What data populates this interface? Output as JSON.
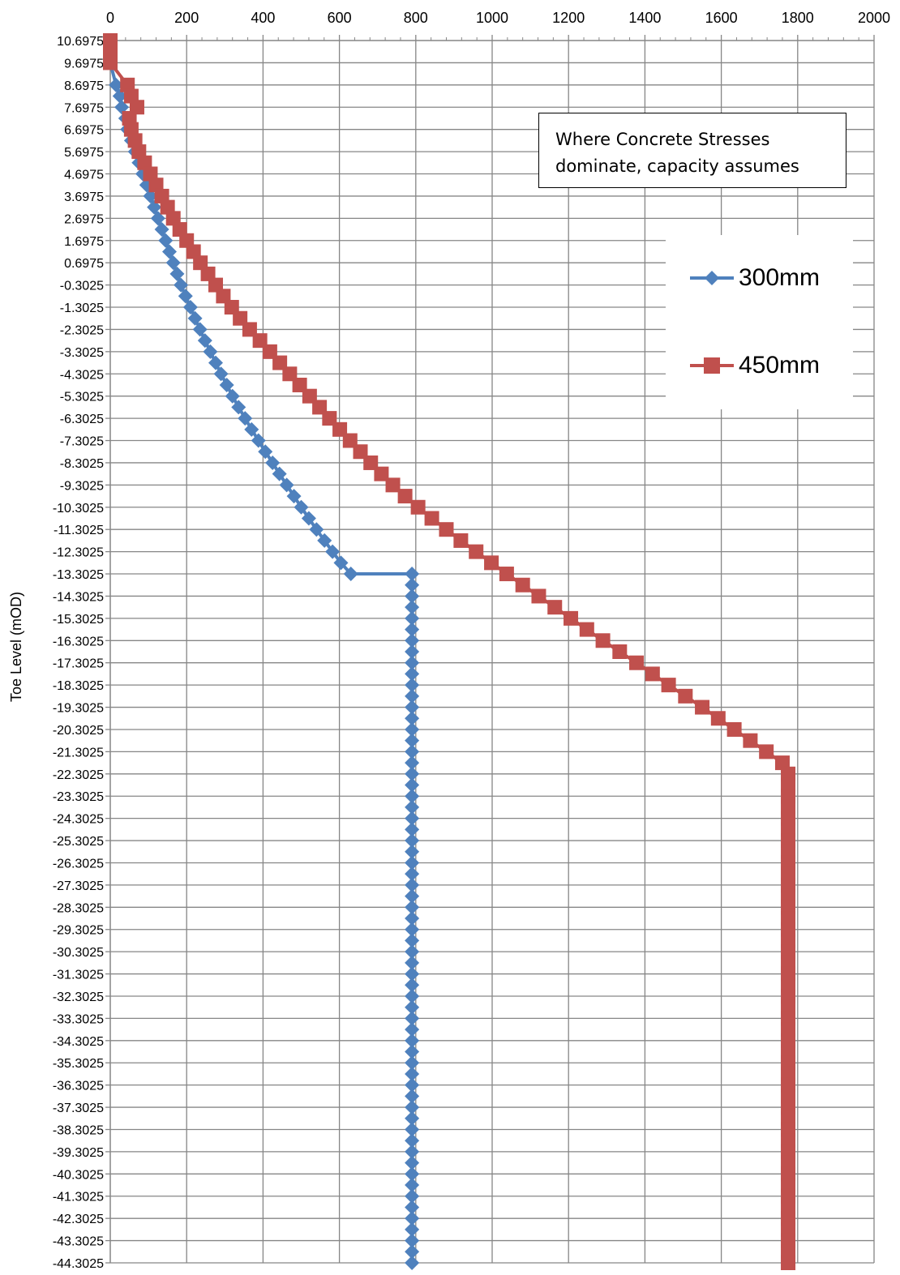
{
  "chart_data": {
    "type": "line",
    "title": "",
    "xlabel": "",
    "ylabel": "Toe Level (mOD)",
    "xlim": [
      0,
      2000
    ],
    "x_ticks": [
      0,
      200,
      400,
      600,
      800,
      1000,
      1200,
      1400,
      1600,
      1800,
      2000
    ],
    "x_axis_position": "top",
    "y_ticks": [
      "10.6975",
      "9.6975",
      "8.6975",
      "7.6975",
      "6.6975",
      "5.6975",
      "4.6975",
      "3.6975",
      "2.6975",
      "1.6975",
      "0.6975",
      "-0.3025",
      "-1.3025",
      "-2.3025",
      "-3.3025",
      "-4.3025",
      "-5.3025",
      "-6.3025",
      "-7.3025",
      "-8.3025",
      "-9.3025",
      "-10.3025",
      "-11.3025",
      "-12.3025",
      "-13.3025",
      "-14.3025",
      "-15.3025",
      "-16.3025",
      "-17.3025",
      "-18.3025",
      "-19.3025",
      "-20.3025",
      "-21.3025",
      "-22.3025",
      "-23.3025",
      "-24.3025",
      "-25.3025",
      "-26.3025",
      "-27.3025",
      "-28.3025",
      "-29.3025",
      "-30.3025",
      "-31.3025",
      "-32.3025",
      "-33.3025",
      "-34.3025",
      "-35.3025",
      "-36.3025",
      "-37.3025",
      "-38.3025",
      "-39.3025",
      "-40.3025",
      "-41.3025",
      "-42.3025",
      "-43.3025",
      "-44.3025"
    ],
    "ylim": [
      -44.3025,
      10.6975
    ],
    "grid": true,
    "legend_position": "right",
    "annotation": [
      "Where Concrete Stresses",
      "dominate, capacity assumes"
    ],
    "series": [
      {
        "name": "300mm",
        "color": "#4f81bd",
        "marker": "diamond",
        "points": [
          [
            0,
            10.6975
          ],
          [
            0,
            10.1975
          ],
          [
            0,
            9.6975
          ],
          [
            15,
            8.6975
          ],
          [
            25,
            8.1975
          ],
          [
            30,
            7.6975
          ],
          [
            40,
            7.1975
          ],
          [
            45,
            6.6975
          ],
          [
            55,
            6.1975
          ],
          [
            65,
            5.6975
          ],
          [
            75,
            5.1975
          ],
          [
            85,
            4.6975
          ],
          [
            95,
            4.1975
          ],
          [
            105,
            3.6975
          ],
          [
            115,
            3.1975
          ],
          [
            125,
            2.6975
          ],
          [
            135,
            2.1975
          ],
          [
            145,
            1.6975
          ],
          [
            155,
            1.1975
          ],
          [
            165,
            0.6975
          ],
          [
            175,
            0.1975
          ],
          [
            185,
            -0.3025
          ],
          [
            197,
            -0.8025
          ],
          [
            210,
            -1.3025
          ],
          [
            222,
            -1.8025
          ],
          [
            235,
            -2.3025
          ],
          [
            248,
            -2.8025
          ],
          [
            262,
            -3.3025
          ],
          [
            276,
            -3.8025
          ],
          [
            290,
            -4.3025
          ],
          [
            305,
            -4.8025
          ],
          [
            320,
            -5.3025
          ],
          [
            336,
            -5.8025
          ],
          [
            353,
            -6.3025
          ],
          [
            370,
            -6.8025
          ],
          [
            388,
            -7.3025
          ],
          [
            406,
            -7.8025
          ],
          [
            425,
            -8.3025
          ],
          [
            443,
            -8.8025
          ],
          [
            462,
            -9.3025
          ],
          [
            481,
            -9.8025
          ],
          [
            500,
            -10.3025
          ],
          [
            520,
            -10.8025
          ],
          [
            540,
            -11.3025
          ],
          [
            561,
            -11.8025
          ],
          [
            582,
            -12.3025
          ],
          [
            604,
            -12.8025
          ],
          [
            630,
            -13.3025
          ],
          [
            790,
            -13.3025
          ],
          [
            790,
            -13.8025
          ],
          [
            790,
            -14.3025
          ],
          [
            790,
            -14.8025
          ],
          [
            790,
            -15.3025
          ],
          [
            790,
            -15.8025
          ],
          [
            790,
            -16.3025
          ],
          [
            790,
            -16.8025
          ],
          [
            790,
            -17.3025
          ],
          [
            790,
            -17.8025
          ],
          [
            790,
            -18.3025
          ],
          [
            790,
            -18.8025
          ],
          [
            790,
            -19.3025
          ],
          [
            790,
            -19.8025
          ],
          [
            790,
            -20.3025
          ],
          [
            790,
            -20.8025
          ],
          [
            790,
            -21.3025
          ],
          [
            790,
            -21.8025
          ],
          [
            790,
            -22.3025
          ],
          [
            790,
            -22.8025
          ],
          [
            790,
            -23.3025
          ],
          [
            790,
            -23.8025
          ],
          [
            790,
            -24.3025
          ],
          [
            790,
            -24.8025
          ],
          [
            790,
            -25.3025
          ],
          [
            790,
            -25.8025
          ],
          [
            790,
            -26.3025
          ],
          [
            790,
            -26.8025
          ],
          [
            790,
            -27.3025
          ],
          [
            790,
            -27.8025
          ],
          [
            790,
            -28.3025
          ],
          [
            790,
            -28.8025
          ],
          [
            790,
            -29.3025
          ],
          [
            790,
            -29.8025
          ],
          [
            790,
            -30.3025
          ],
          [
            790,
            -30.8025
          ],
          [
            790,
            -31.3025
          ],
          [
            790,
            -31.8025
          ],
          [
            790,
            -32.3025
          ],
          [
            790,
            -32.8025
          ],
          [
            790,
            -33.3025
          ],
          [
            790,
            -33.8025
          ],
          [
            790,
            -34.3025
          ],
          [
            790,
            -34.8025
          ],
          [
            790,
            -35.3025
          ],
          [
            790,
            -35.8025
          ],
          [
            790,
            -36.3025
          ],
          [
            790,
            -36.8025
          ],
          [
            790,
            -37.3025
          ],
          [
            790,
            -37.8025
          ],
          [
            790,
            -38.3025
          ],
          [
            790,
            -38.8025
          ],
          [
            790,
            -39.3025
          ],
          [
            790,
            -39.8025
          ],
          [
            790,
            -40.3025
          ],
          [
            790,
            -40.8025
          ],
          [
            790,
            -41.3025
          ],
          [
            790,
            -41.8025
          ],
          [
            790,
            -42.3025
          ],
          [
            790,
            -42.8025
          ],
          [
            790,
            -43.3025
          ],
          [
            790,
            -43.8025
          ],
          [
            790,
            -44.3025
          ]
        ]
      },
      {
        "name": "450mm",
        "color": "#c0504d",
        "marker": "square",
        "points": [
          [
            0,
            10.6975
          ],
          [
            0,
            10.1975
          ],
          [
            0,
            9.6975
          ],
          [
            45,
            8.6975
          ],
          [
            55,
            8.1975
          ],
          [
            70,
            7.6975
          ],
          [
            50,
            7.1975
          ],
          [
            55,
            6.6975
          ],
          [
            65,
            6.1975
          ],
          [
            75,
            5.6975
          ],
          [
            90,
            5.1975
          ],
          [
            105,
            4.6975
          ],
          [
            120,
            4.1975
          ],
          [
            135,
            3.6975
          ],
          [
            150,
            3.1975
          ],
          [
            165,
            2.6975
          ],
          [
            182,
            2.1975
          ],
          [
            200,
            1.6975
          ],
          [
            218,
            1.1975
          ],
          [
            236,
            0.6975
          ],
          [
            256,
            0.1975
          ],
          [
            276,
            -0.3025
          ],
          [
            296,
            -0.8025
          ],
          [
            318,
            -1.3025
          ],
          [
            340,
            -1.8025
          ],
          [
            365,
            -2.3025
          ],
          [
            392,
            -2.8025
          ],
          [
            418,
            -3.3025
          ],
          [
            444,
            -3.8025
          ],
          [
            470,
            -4.3025
          ],
          [
            496,
            -4.8025
          ],
          [
            522,
            -5.3025
          ],
          [
            548,
            -5.8025
          ],
          [
            574,
            -6.3025
          ],
          [
            601,
            -6.8025
          ],
          [
            628,
            -7.3025
          ],
          [
            655,
            -7.8025
          ],
          [
            682,
            -8.3025
          ],
          [
            710,
            -8.8025
          ],
          [
            740,
            -9.3025
          ],
          [
            772,
            -9.8025
          ],
          [
            806,
            -10.3025
          ],
          [
            842,
            -10.8025
          ],
          [
            880,
            -11.3025
          ],
          [
            918,
            -11.8025
          ],
          [
            958,
            -12.3025
          ],
          [
            998,
            -12.8025
          ],
          [
            1038,
            -13.3025
          ],
          [
            1080,
            -13.8025
          ],
          [
            1122,
            -14.3025
          ],
          [
            1164,
            -14.8025
          ],
          [
            1206,
            -15.3025
          ],
          [
            1248,
            -15.8025
          ],
          [
            1290,
            -16.3025
          ],
          [
            1334,
            -16.8025
          ],
          [
            1378,
            -17.3025
          ],
          [
            1420,
            -17.8025
          ],
          [
            1462,
            -18.3025
          ],
          [
            1506,
            -18.8025
          ],
          [
            1550,
            -19.3025
          ],
          [
            1592,
            -19.8025
          ],
          [
            1634,
            -20.3025
          ],
          [
            1676,
            -20.8025
          ],
          [
            1718,
            -21.3025
          ],
          [
            1760,
            -21.8025
          ],
          [
            1775,
            -22.3025
          ],
          [
            1775,
            -22.8025
          ],
          [
            1775,
            -23.3025
          ],
          [
            1775,
            -23.8025
          ],
          [
            1775,
            -24.3025
          ],
          [
            1775,
            -24.8025
          ],
          [
            1775,
            -25.3025
          ],
          [
            1775,
            -25.8025
          ],
          [
            1775,
            -26.3025
          ],
          [
            1775,
            -26.8025
          ],
          [
            1775,
            -27.3025
          ],
          [
            1775,
            -27.8025
          ],
          [
            1775,
            -28.3025
          ],
          [
            1775,
            -28.8025
          ],
          [
            1775,
            -29.3025
          ],
          [
            1775,
            -29.8025
          ],
          [
            1775,
            -30.3025
          ],
          [
            1775,
            -30.8025
          ],
          [
            1775,
            -31.3025
          ],
          [
            1775,
            -31.8025
          ],
          [
            1775,
            -32.3025
          ],
          [
            1775,
            -32.8025
          ],
          [
            1775,
            -33.3025
          ],
          [
            1775,
            -33.8025
          ],
          [
            1775,
            -34.3025
          ],
          [
            1775,
            -34.8025
          ],
          [
            1775,
            -35.3025
          ],
          [
            1775,
            -35.8025
          ],
          [
            1775,
            -36.3025
          ],
          [
            1775,
            -36.8025
          ],
          [
            1775,
            -37.3025
          ],
          [
            1775,
            -37.8025
          ],
          [
            1775,
            -38.3025
          ],
          [
            1775,
            -38.8025
          ],
          [
            1775,
            -39.3025
          ],
          [
            1775,
            -39.8025
          ],
          [
            1775,
            -40.3025
          ],
          [
            1775,
            -40.8025
          ],
          [
            1775,
            -41.3025
          ],
          [
            1775,
            -41.8025
          ],
          [
            1775,
            -42.3025
          ],
          [
            1775,
            -42.8025
          ],
          [
            1775,
            -43.3025
          ],
          [
            1775,
            -43.8025
          ],
          [
            1775,
            -44.3025
          ]
        ]
      }
    ]
  }
}
